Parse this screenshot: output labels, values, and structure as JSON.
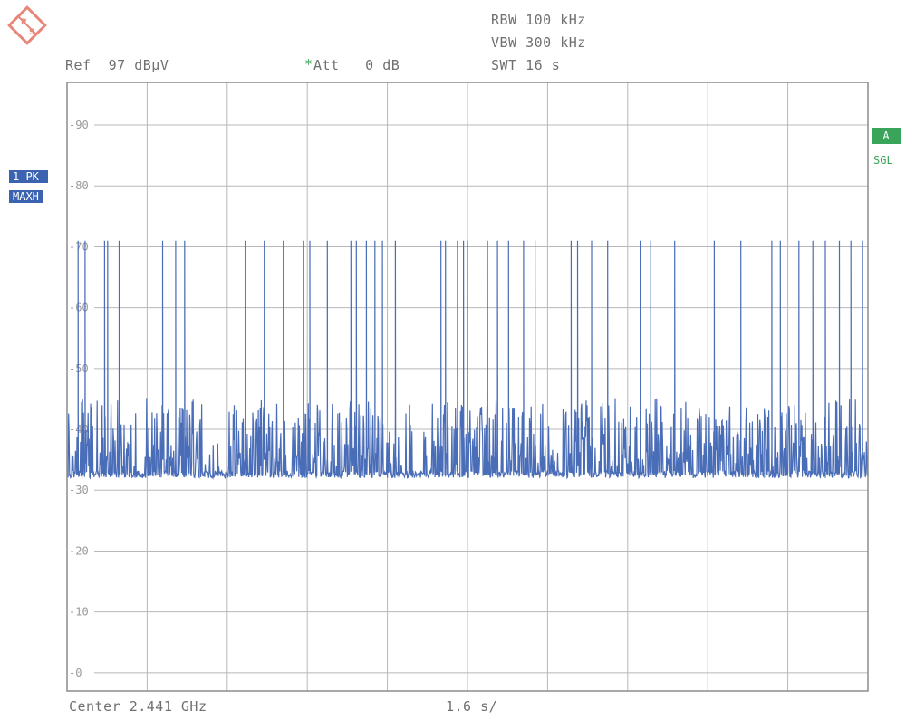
{
  "header": {
    "ref": "Ref  97 dBµV",
    "att_star": "*",
    "att": "Att   0 dB",
    "rbw": "RBW 100 kHz",
    "vbw": "VBW 300 kHz",
    "swt": "SWT 16 s"
  },
  "footer": {
    "center": "Center 2.441 GHz",
    "span": "1.6 s/"
  },
  "trace_labels": {
    "pk": "1 PK",
    "maxh": "MAXH"
  },
  "status": {
    "a": "A",
    "sgl": "SGL"
  },
  "colors": {
    "trace": "#4a6db8",
    "grid": "#b8b8b8",
    "frame": "#8c8c8c",
    "label_bg": "#3b63b0",
    "status_green": "#3aa55a",
    "logo": "#e8867a"
  },
  "chart_data": {
    "type": "line",
    "title": "",
    "xlabel": "",
    "ylabel": "",
    "ylim": [
      -3,
      97
    ],
    "xlim": [
      0,
      16
    ],
    "y_ticks": [
      90,
      80,
      70,
      60,
      50,
      40,
      30,
      20,
      10,
      0
    ],
    "y_tick_labels": [
      "90",
      "80",
      "70",
      "60",
      "50",
      "40",
      "30",
      "20",
      "10",
      "0"
    ],
    "grid": true,
    "series": [
      {
        "noise_floor": 32,
        "peaks": [
          {
            "t": 0.22,
            "y": 71
          },
          {
            "t": 0.36,
            "y": 71
          },
          {
            "t": 0.75,
            "y": 71
          },
          {
            "t": 0.81,
            "y": 71
          },
          {
            "t": 1.04,
            "y": 71
          },
          {
            "t": 1.91,
            "y": 71
          },
          {
            "t": 2.17,
            "y": 71
          },
          {
            "t": 2.35,
            "y": 71
          },
          {
            "t": 3.56,
            "y": 71
          },
          {
            "t": 3.94,
            "y": 71
          },
          {
            "t": 4.32,
            "y": 71
          },
          {
            "t": 4.72,
            "y": 71
          },
          {
            "t": 4.85,
            "y": 71
          },
          {
            "t": 5.2,
            "y": 71
          },
          {
            "t": 5.67,
            "y": 71
          },
          {
            "t": 5.78,
            "y": 71
          },
          {
            "t": 5.98,
            "y": 71
          },
          {
            "t": 6.15,
            "y": 71
          },
          {
            "t": 6.3,
            "y": 71
          },
          {
            "t": 6.56,
            "y": 71
          },
          {
            "t": 7.47,
            "y": 71
          },
          {
            "t": 7.56,
            "y": 71
          },
          {
            "t": 7.8,
            "y": 71
          },
          {
            "t": 7.92,
            "y": 71
          },
          {
            "t": 8.0,
            "y": 71
          },
          {
            "t": 8.4,
            "y": 71
          },
          {
            "t": 8.6,
            "y": 71
          },
          {
            "t": 8.82,
            "y": 71
          },
          {
            "t": 9.12,
            "y": 71
          },
          {
            "t": 9.35,
            "y": 71
          },
          {
            "t": 10.07,
            "y": 71
          },
          {
            "t": 10.2,
            "y": 71
          },
          {
            "t": 10.48,
            "y": 71
          },
          {
            "t": 10.8,
            "y": 71
          },
          {
            "t": 11.45,
            "y": 71
          },
          {
            "t": 11.66,
            "y": 71
          },
          {
            "t": 12.14,
            "y": 71
          },
          {
            "t": 12.93,
            "y": 71
          },
          {
            "t": 13.46,
            "y": 71
          },
          {
            "t": 14.08,
            "y": 71
          },
          {
            "t": 14.25,
            "y": 71
          },
          {
            "t": 14.62,
            "y": 71
          },
          {
            "t": 14.9,
            "y": 71
          },
          {
            "t": 15.15,
            "y": 71
          },
          {
            "t": 15.43,
            "y": 71
          },
          {
            "t": 15.66,
            "y": 71
          },
          {
            "t": 15.89,
            "y": 71
          }
        ]
      }
    ]
  }
}
